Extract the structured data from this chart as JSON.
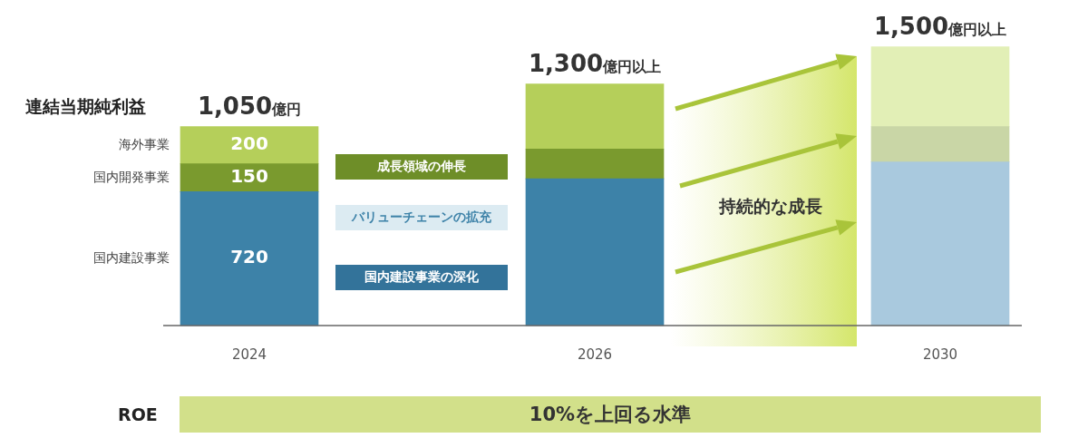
{
  "chart_data": {
    "type": "bar",
    "stacked": true,
    "categories": [
      "2024",
      "2026",
      "2030"
    ],
    "series": [
      {
        "name": "国内建設事業",
        "colors": [
          "#3d82a8",
          "#3d82a8",
          "#a9c9de"
        ],
        "values": [
          720,
          790,
          880
        ],
        "value_labels": [
          "720",
          null,
          null
        ]
      },
      {
        "name": "国内開発事業",
        "colors": [
          "#7a9a2e",
          "#7a9a2e",
          "#c9d6a6"
        ],
        "values": [
          150,
          160,
          190
        ],
        "value_labels": [
          "150",
          null,
          null
        ]
      },
      {
        "name": "海外事業",
        "colors": [
          "#b5cf5a",
          "#b5cf5a",
          "#e2efb6"
        ],
        "values": [
          200,
          350,
          430
        ],
        "value_labels": [
          "200",
          null,
          null
        ]
      }
    ],
    "annotations": [
      {
        "text": "1,050億円",
        "x": "2024",
        "y": 1070
      },
      {
        "text": "1,300億円以上",
        "x": "2026",
        "y": 1300
      },
      {
        "text": "1,500億円以上",
        "x": "2030",
        "y": 1500
      },
      "連結当期純利益",
      "成長領域の伸長",
      "バリューチェーンの拡充",
      "国内建設事業の深化",
      "持続的な成長",
      "ROE",
      "10%を上回る水準"
    ],
    "grid": false,
    "legend": false
  }
}
